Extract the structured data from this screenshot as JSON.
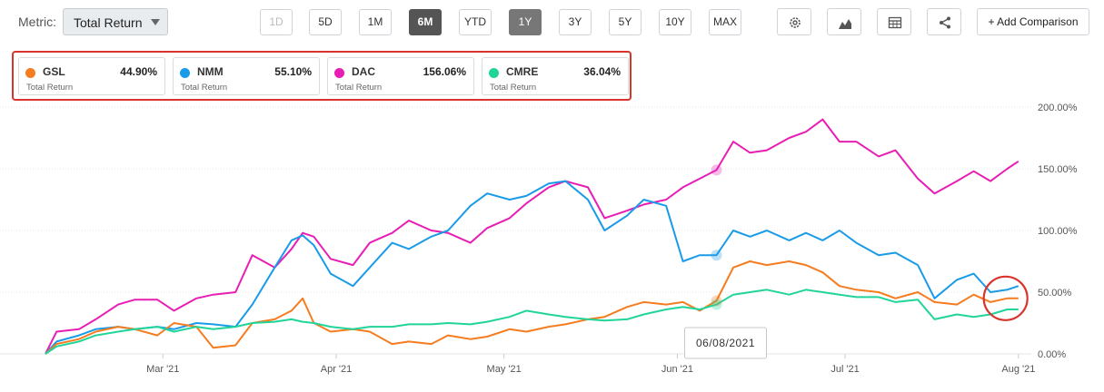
{
  "toolbar": {
    "metric_label": "Metric:",
    "metric_value": "Total Return",
    "ranges": [
      "1D",
      "5D",
      "1M",
      "6M",
      "YTD",
      "1Y",
      "3Y",
      "5Y",
      "10Y",
      "MAX"
    ],
    "add_comparison": "+ Add Comparison"
  },
  "legend": [
    {
      "ticker": "GSL",
      "value": "44.90%",
      "label": "Total Return",
      "color": "#f57c1f"
    },
    {
      "ticker": "NMM",
      "value": "55.10%",
      "label": "Total Return",
      "color": "#1a9be8"
    },
    {
      "ticker": "DAC",
      "value": "156.06%",
      "label": "Total Return",
      "color": "#e81eb4"
    },
    {
      "ticker": "CMRE",
      "value": "36.04%",
      "label": "Total Return",
      "color": "#21d49a"
    }
  ],
  "tooltip": "06/08/2021",
  "chart_data": {
    "type": "line",
    "x_ticks": [
      "Mar '21",
      "Apr '21",
      "May '21",
      "Jun '21",
      "Jul '21",
      "Aug '21"
    ],
    "y_ticks": [
      "200.00%",
      "150.00%",
      "100.00%",
      "50.00%",
      "0.00%"
    ],
    "ylim": [
      0,
      200
    ],
    "x_start": "2021-02-08",
    "x_end": "2021-08-02",
    "hover_date": "2021-06-08",
    "series": [
      {
        "name": "DAC",
        "color": "#e81eb4",
        "values": [
          [
            "2021-02-08",
            0
          ],
          [
            "2021-02-10",
            18
          ],
          [
            "2021-02-14",
            20
          ],
          [
            "2021-02-17",
            28
          ],
          [
            "2021-02-21",
            40
          ],
          [
            "2021-02-24",
            44
          ],
          [
            "2021-02-28",
            44
          ],
          [
            "2021-03-03",
            35
          ],
          [
            "2021-03-07",
            45
          ],
          [
            "2021-03-10",
            48
          ],
          [
            "2021-03-14",
            50
          ],
          [
            "2021-03-17",
            80
          ],
          [
            "2021-03-21",
            70
          ],
          [
            "2021-03-24",
            85
          ],
          [
            "2021-03-26",
            98
          ],
          [
            "2021-03-28",
            95
          ],
          [
            "2021-03-31",
            77
          ],
          [
            "2021-04-04",
            72
          ],
          [
            "2021-04-07",
            90
          ],
          [
            "2021-04-11",
            98
          ],
          [
            "2021-04-14",
            108
          ],
          [
            "2021-04-18",
            100
          ],
          [
            "2021-04-21",
            98
          ],
          [
            "2021-04-25",
            90
          ],
          [
            "2021-04-28",
            102
          ],
          [
            "2021-05-02",
            110
          ],
          [
            "2021-05-05",
            122
          ],
          [
            "2021-05-09",
            135
          ],
          [
            "2021-05-12",
            140
          ],
          [
            "2021-05-16",
            135
          ],
          [
            "2021-05-19",
            110
          ],
          [
            "2021-05-23",
            116
          ],
          [
            "2021-05-26",
            121
          ],
          [
            "2021-05-30",
            125
          ],
          [
            "2021-06-02",
            135
          ],
          [
            "2021-06-05",
            142
          ],
          [
            "2021-06-08",
            149
          ],
          [
            "2021-06-11",
            172
          ],
          [
            "2021-06-14",
            163
          ],
          [
            "2021-06-17",
            165
          ],
          [
            "2021-06-21",
            175
          ],
          [
            "2021-06-24",
            180
          ],
          [
            "2021-06-27",
            190
          ],
          [
            "2021-06-30",
            172
          ],
          [
            "2021-07-03",
            172
          ],
          [
            "2021-07-07",
            160
          ],
          [
            "2021-07-10",
            165
          ],
          [
            "2021-07-14",
            142
          ],
          [
            "2021-07-17",
            130
          ],
          [
            "2021-07-21",
            140
          ],
          [
            "2021-07-24",
            148
          ],
          [
            "2021-07-27",
            140
          ],
          [
            "2021-07-30",
            150
          ],
          [
            "2021-08-01",
            156
          ]
        ]
      },
      {
        "name": "NMM",
        "color": "#1a9be8",
        "values": [
          [
            "2021-02-08",
            0
          ],
          [
            "2021-02-10",
            10
          ],
          [
            "2021-02-14",
            15
          ],
          [
            "2021-02-17",
            20
          ],
          [
            "2021-02-21",
            22
          ],
          [
            "2021-02-24",
            20
          ],
          [
            "2021-02-28",
            22
          ],
          [
            "2021-03-03",
            20
          ],
          [
            "2021-03-07",
            25
          ],
          [
            "2021-03-10",
            24
          ],
          [
            "2021-03-14",
            22
          ],
          [
            "2021-03-17",
            40
          ],
          [
            "2021-03-21",
            70
          ],
          [
            "2021-03-24",
            92
          ],
          [
            "2021-03-26",
            96
          ],
          [
            "2021-03-28",
            88
          ],
          [
            "2021-03-31",
            65
          ],
          [
            "2021-04-04",
            55
          ],
          [
            "2021-04-07",
            70
          ],
          [
            "2021-04-11",
            90
          ],
          [
            "2021-04-14",
            85
          ],
          [
            "2021-04-18",
            95
          ],
          [
            "2021-04-21",
            100
          ],
          [
            "2021-04-25",
            120
          ],
          [
            "2021-04-28",
            130
          ],
          [
            "2021-05-02",
            125
          ],
          [
            "2021-05-05",
            128
          ],
          [
            "2021-05-09",
            138
          ],
          [
            "2021-05-12",
            140
          ],
          [
            "2021-05-16",
            125
          ],
          [
            "2021-05-19",
            100
          ],
          [
            "2021-05-23",
            112
          ],
          [
            "2021-05-26",
            125
          ],
          [
            "2021-05-30",
            120
          ],
          [
            "2021-06-02",
            75
          ],
          [
            "2021-06-05",
            80
          ],
          [
            "2021-06-08",
            80
          ],
          [
            "2021-06-11",
            100
          ],
          [
            "2021-06-14",
            95
          ],
          [
            "2021-06-17",
            100
          ],
          [
            "2021-06-21",
            92
          ],
          [
            "2021-06-24",
            98
          ],
          [
            "2021-06-27",
            92
          ],
          [
            "2021-06-30",
            100
          ],
          [
            "2021-07-03",
            90
          ],
          [
            "2021-07-07",
            80
          ],
          [
            "2021-07-10",
            82
          ],
          [
            "2021-07-14",
            72
          ],
          [
            "2021-07-17",
            45
          ],
          [
            "2021-07-21",
            60
          ],
          [
            "2021-07-24",
            65
          ],
          [
            "2021-07-27",
            50
          ],
          [
            "2021-07-30",
            52
          ],
          [
            "2021-08-01",
            55
          ]
        ]
      },
      {
        "name": "GSL",
        "color": "#f57c1f",
        "values": [
          [
            "2021-02-08",
            0
          ],
          [
            "2021-02-10",
            8
          ],
          [
            "2021-02-14",
            12
          ],
          [
            "2021-02-17",
            18
          ],
          [
            "2021-02-21",
            22
          ],
          [
            "2021-02-24",
            20
          ],
          [
            "2021-02-28",
            15
          ],
          [
            "2021-03-03",
            25
          ],
          [
            "2021-03-07",
            22
          ],
          [
            "2021-03-10",
            5
          ],
          [
            "2021-03-14",
            7
          ],
          [
            "2021-03-17",
            25
          ],
          [
            "2021-03-21",
            28
          ],
          [
            "2021-03-24",
            35
          ],
          [
            "2021-03-26",
            45
          ],
          [
            "2021-03-28",
            25
          ],
          [
            "2021-03-31",
            18
          ],
          [
            "2021-04-04",
            20
          ],
          [
            "2021-04-07",
            18
          ],
          [
            "2021-04-11",
            8
          ],
          [
            "2021-04-14",
            10
          ],
          [
            "2021-04-18",
            8
          ],
          [
            "2021-04-21",
            15
          ],
          [
            "2021-04-25",
            12
          ],
          [
            "2021-04-28",
            14
          ],
          [
            "2021-05-02",
            20
          ],
          [
            "2021-05-05",
            18
          ],
          [
            "2021-05-09",
            22
          ],
          [
            "2021-05-12",
            24
          ],
          [
            "2021-05-16",
            28
          ],
          [
            "2021-05-19",
            30
          ],
          [
            "2021-05-23",
            38
          ],
          [
            "2021-05-26",
            42
          ],
          [
            "2021-05-30",
            40
          ],
          [
            "2021-06-02",
            42
          ],
          [
            "2021-06-05",
            35
          ],
          [
            "2021-06-08",
            43
          ],
          [
            "2021-06-11",
            70
          ],
          [
            "2021-06-14",
            75
          ],
          [
            "2021-06-17",
            72
          ],
          [
            "2021-06-21",
            75
          ],
          [
            "2021-06-24",
            72
          ],
          [
            "2021-06-27",
            66
          ],
          [
            "2021-06-30",
            55
          ],
          [
            "2021-07-03",
            52
          ],
          [
            "2021-07-07",
            50
          ],
          [
            "2021-07-10",
            45
          ],
          [
            "2021-07-14",
            50
          ],
          [
            "2021-07-17",
            42
          ],
          [
            "2021-07-21",
            40
          ],
          [
            "2021-07-24",
            48
          ],
          [
            "2021-07-27",
            42
          ],
          [
            "2021-07-30",
            45
          ],
          [
            "2021-08-01",
            45
          ]
        ]
      },
      {
        "name": "CMRE",
        "color": "#21d49a",
        "values": [
          [
            "2021-02-08",
            0
          ],
          [
            "2021-02-10",
            6
          ],
          [
            "2021-02-14",
            10
          ],
          [
            "2021-02-17",
            15
          ],
          [
            "2021-02-21",
            18
          ],
          [
            "2021-02-24",
            20
          ],
          [
            "2021-02-28",
            22
          ],
          [
            "2021-03-03",
            18
          ],
          [
            "2021-03-07",
            22
          ],
          [
            "2021-03-10",
            20
          ],
          [
            "2021-03-14",
            22
          ],
          [
            "2021-03-17",
            25
          ],
          [
            "2021-03-21",
            26
          ],
          [
            "2021-03-24",
            28
          ],
          [
            "2021-03-26",
            26
          ],
          [
            "2021-03-28",
            25
          ],
          [
            "2021-03-31",
            22
          ],
          [
            "2021-04-04",
            20
          ],
          [
            "2021-04-07",
            22
          ],
          [
            "2021-04-11",
            22
          ],
          [
            "2021-04-14",
            24
          ],
          [
            "2021-04-18",
            24
          ],
          [
            "2021-04-21",
            25
          ],
          [
            "2021-04-25",
            24
          ],
          [
            "2021-04-28",
            26
          ],
          [
            "2021-05-02",
            30
          ],
          [
            "2021-05-05",
            35
          ],
          [
            "2021-05-09",
            32
          ],
          [
            "2021-05-12",
            30
          ],
          [
            "2021-05-16",
            28
          ],
          [
            "2021-05-19",
            27
          ],
          [
            "2021-05-23",
            28
          ],
          [
            "2021-05-26",
            32
          ],
          [
            "2021-05-30",
            36
          ],
          [
            "2021-06-02",
            38
          ],
          [
            "2021-06-05",
            36
          ],
          [
            "2021-06-08",
            40
          ],
          [
            "2021-06-11",
            48
          ],
          [
            "2021-06-14",
            50
          ],
          [
            "2021-06-17",
            52
          ],
          [
            "2021-06-21",
            48
          ],
          [
            "2021-06-24",
            52
          ],
          [
            "2021-06-27",
            50
          ],
          [
            "2021-06-30",
            48
          ],
          [
            "2021-07-03",
            46
          ],
          [
            "2021-07-07",
            46
          ],
          [
            "2021-07-10",
            42
          ],
          [
            "2021-07-14",
            44
          ],
          [
            "2021-07-17",
            28
          ],
          [
            "2021-07-21",
            32
          ],
          [
            "2021-07-24",
            30
          ],
          [
            "2021-07-27",
            32
          ],
          [
            "2021-07-30",
            36
          ],
          [
            "2021-08-01",
            36
          ]
        ]
      }
    ]
  }
}
